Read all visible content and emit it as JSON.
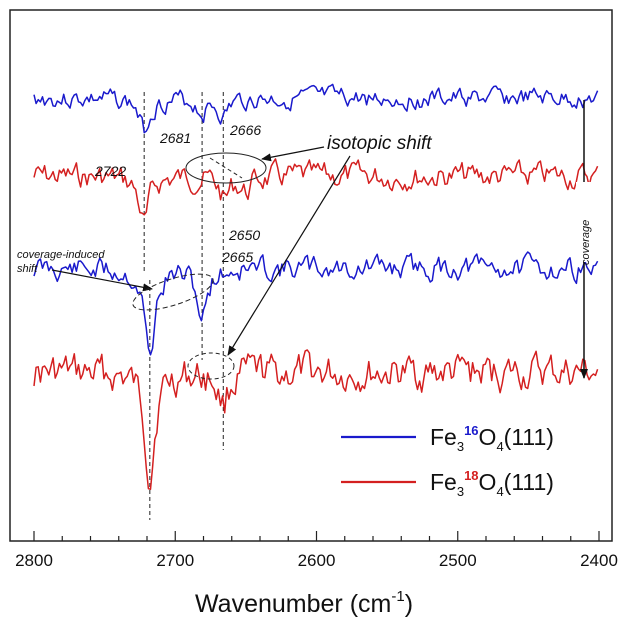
{
  "chart_data": {
    "type": "line",
    "xlabel": "Wavenumber (cm",
    "xlabel_sup": "-1",
    "xlabel_close": ")",
    "xlim": [
      2800,
      2400
    ],
    "x_ticks": [
      "2800",
      "2700",
      "2600",
      "2500",
      "2400"
    ],
    "grid": false,
    "legend_placement": "bottom-right",
    "legend": [
      {
        "prefix": "Fe",
        "sub": "3",
        "isotope": "16",
        "mid": "O",
        "sub2": "4",
        "suffix": "(111)",
        "color": "#1a1acc",
        "isotope_color": "#1a1acc"
      },
      {
        "prefix": "Fe",
        "sub": "3",
        "isotope": "18",
        "mid": "O",
        "sub2": "4",
        "suffix": "(111)",
        "color": "#d42020",
        "isotope_color": "#d42020"
      }
    ],
    "series": [
      {
        "color": "#1a1acc",
        "baseline": 0.13,
        "peaks": [
          [
            2722,
            0.58
          ],
          [
            2681,
            0.23
          ],
          [
            2666,
            0.31
          ]
        ],
        "seed": 3
      },
      {
        "color": "#d42020",
        "baseline": 0.17,
        "peaks": [
          [
            2722,
            0.85
          ],
          [
            2665,
            0.4
          ],
          [
            2650,
            0.25
          ]
        ],
        "seed": 7
      },
      {
        "color": "#1a1acc",
        "baseline": 0.16,
        "peaks": [
          [
            2718,
            1.65
          ],
          [
            2681,
            0.9
          ]
        ],
        "seed": 11
      },
      {
        "color": "#d42020",
        "baseline": 0.25,
        "peaks": [
          [
            2718,
            1.82
          ],
          [
            2666,
            0.55
          ]
        ],
        "seed": 17
      }
    ],
    "annotations": {
      "peak_labels": [
        "2722",
        "2681",
        "2666",
        "2650",
        "2665"
      ],
      "isotopic_shift": "isotopic shift",
      "coverage_induced_line1": "coverage-induced",
      "coverage_induced_line2": "shift",
      "coverage": "coverage"
    }
  }
}
